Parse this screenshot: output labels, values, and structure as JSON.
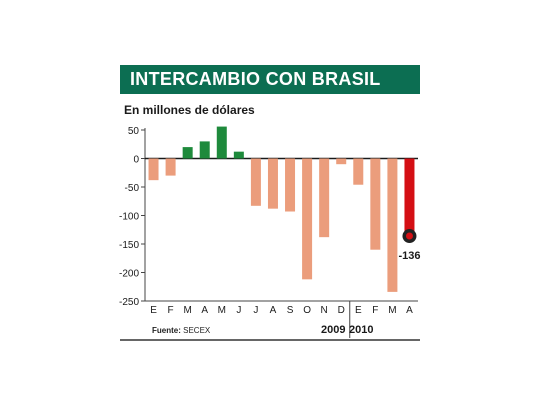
{
  "header": {
    "title": "INTERCAMBIO CON BRASIL",
    "subtitle": "En millones de dólares"
  },
  "footer": {
    "source_label": "Fuente:",
    "source_value": "SECEX",
    "years": [
      "2009",
      "2010"
    ]
  },
  "colors": {
    "title_bg": "#0c6e52",
    "positive": "#1e8a3c",
    "negative": "#eb9d7c",
    "highlight": "#d40f14",
    "marker": "#222222"
  },
  "chart_data": {
    "type": "bar",
    "title": "INTERCAMBIO CON BRASIL",
    "ylabel": "En millones de dólares",
    "ylim": [
      -250,
      50
    ],
    "yticks": [
      50,
      0,
      -50,
      -100,
      -150,
      -200,
      -250
    ],
    "grid": false,
    "categories": [
      "E",
      "F",
      "M",
      "A",
      "M",
      "J",
      "J",
      "A",
      "S",
      "O",
      "N",
      "D",
      "E",
      "F",
      "M",
      "A"
    ],
    "years": [
      {
        "label": "2009",
        "categories_count": 12
      },
      {
        "label": "2010",
        "categories_count": 4
      }
    ],
    "values": [
      -38,
      -30,
      20,
      30,
      56,
      12,
      -83,
      -88,
      -93,
      -212,
      -138,
      -10,
      -46,
      -160,
      -234,
      -136
    ],
    "highlight_index": 15,
    "highlight_label": "-136"
  }
}
